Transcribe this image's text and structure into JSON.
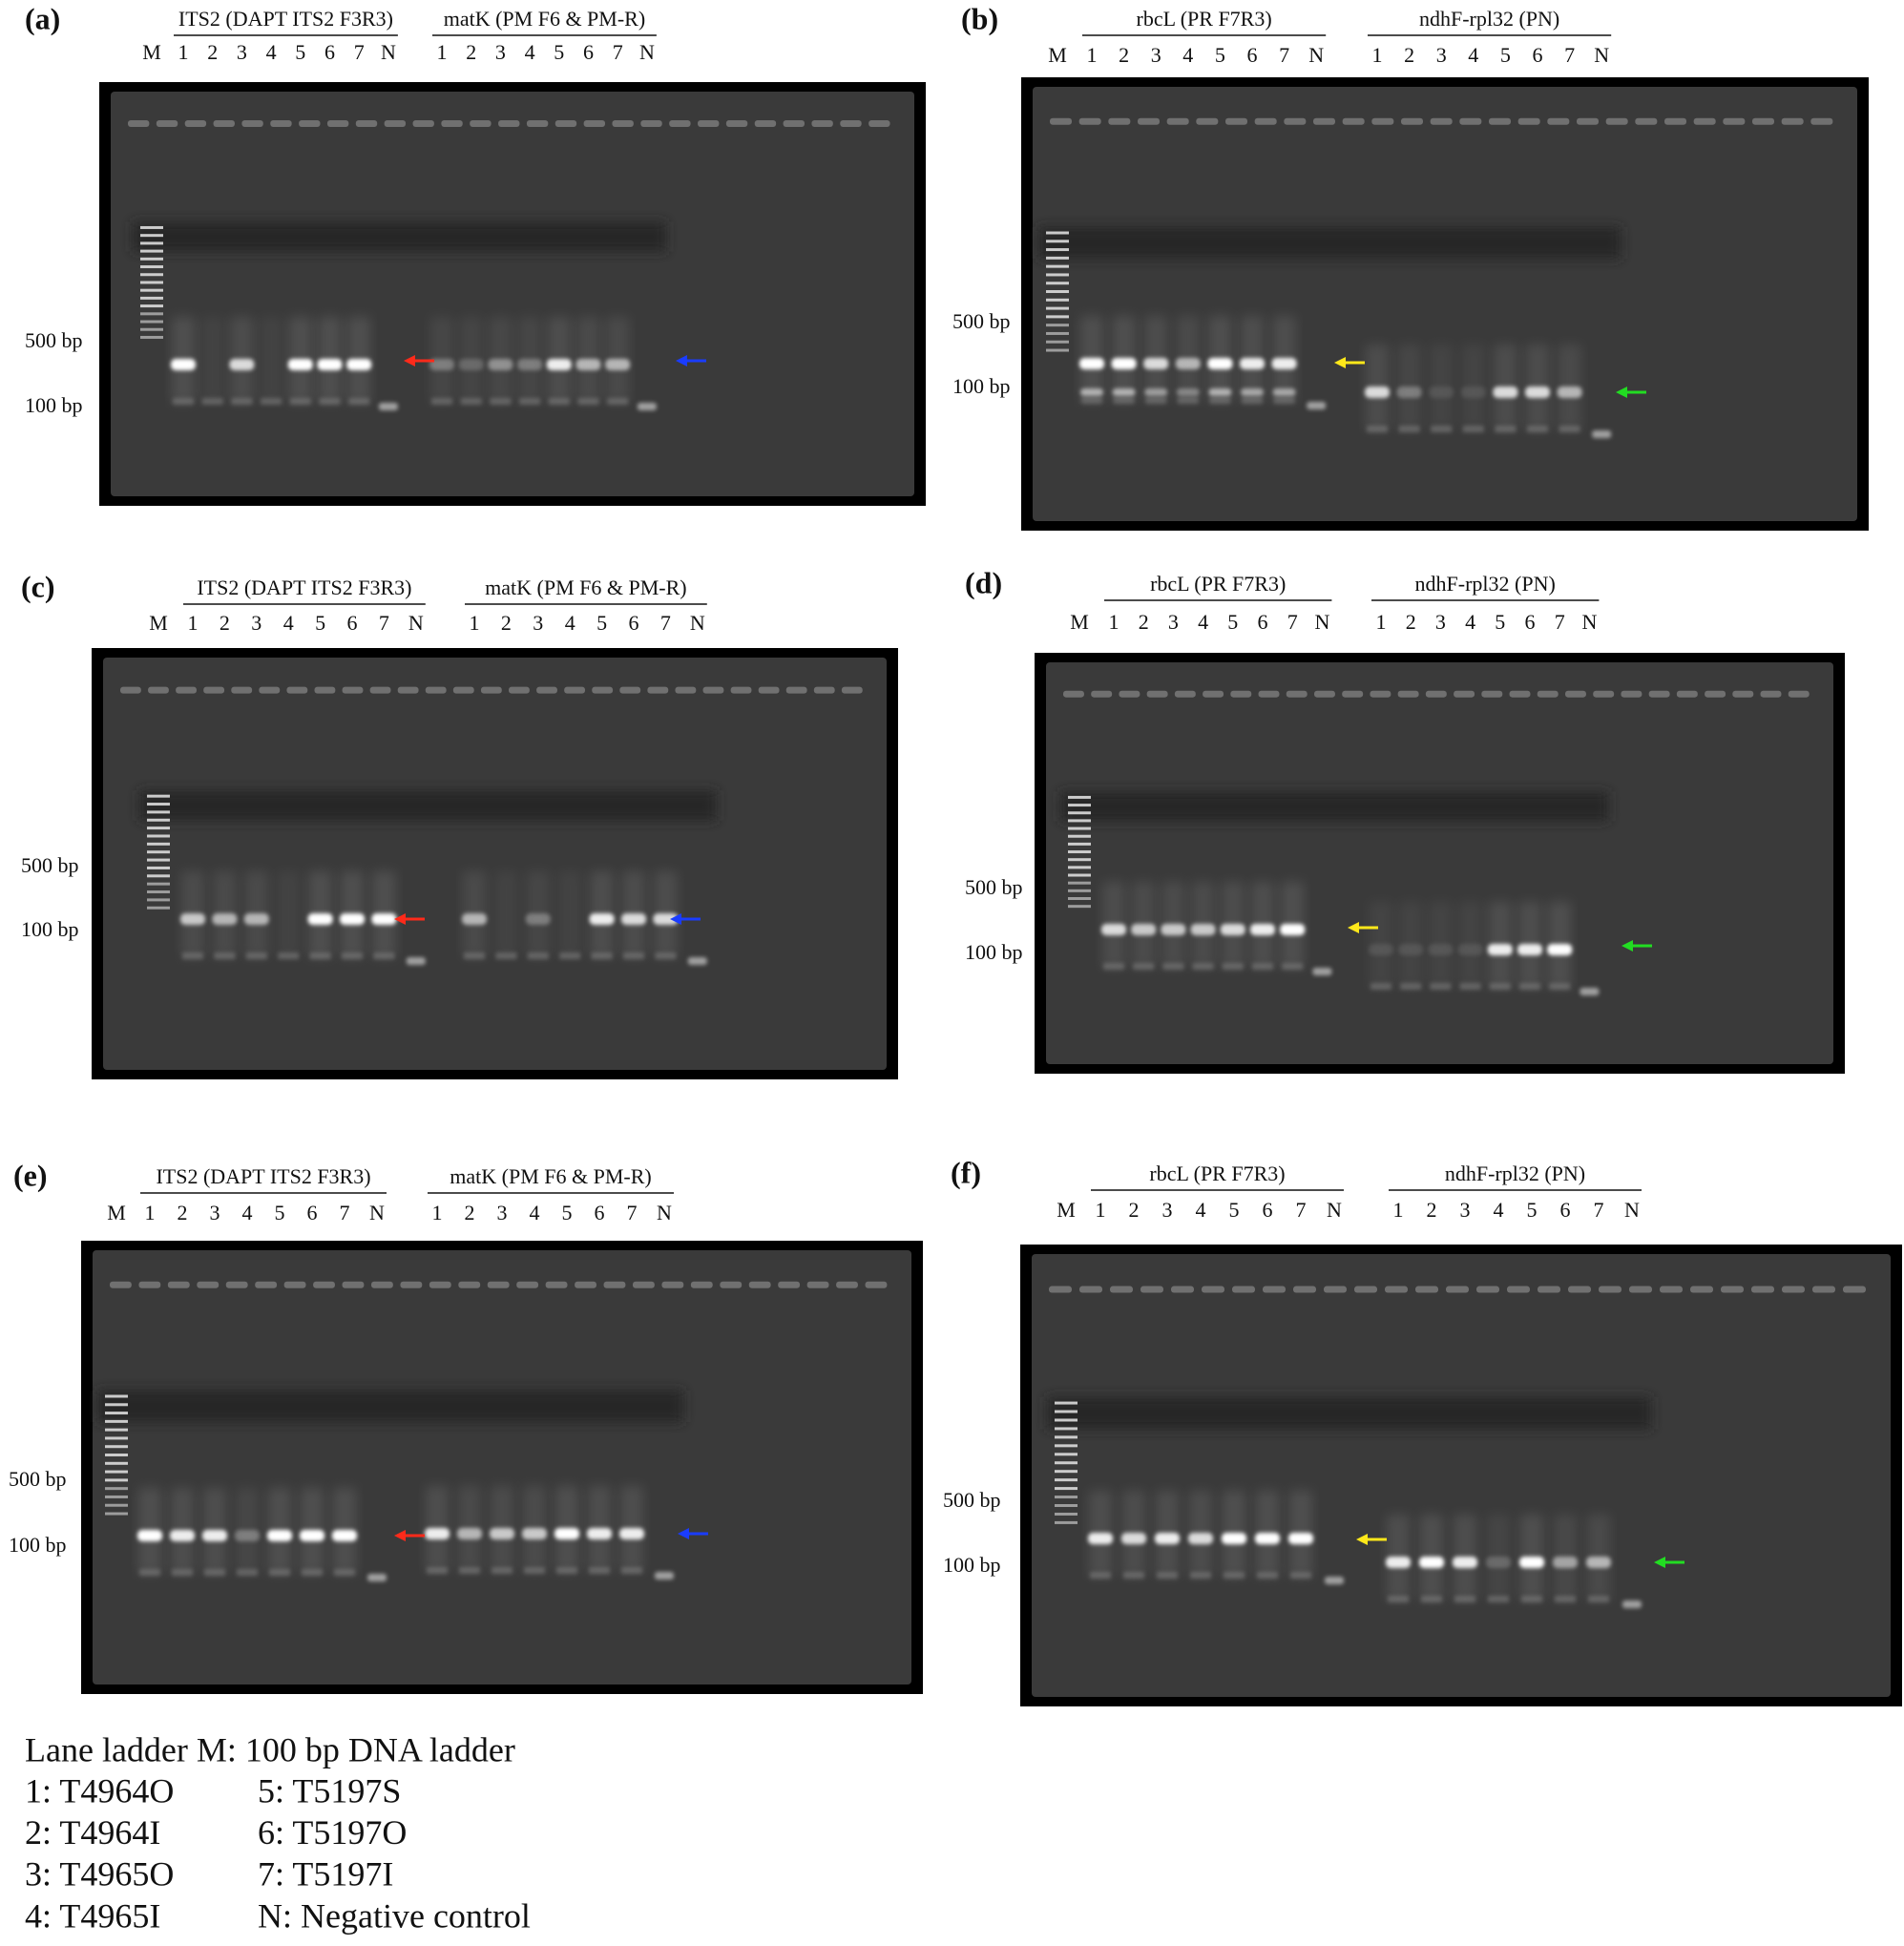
{
  "panels": [
    {
      "label": "(a)",
      "ladder": "M",
      "markers": [
        "500 bp",
        "100 bp"
      ],
      "groups": [
        {
          "title": "ITS2 (DAPT ITS2 F3R3)",
          "lanes": [
            "1",
            "2",
            "3",
            "4",
            "5",
            "6",
            "7",
            "N"
          ]
        },
        {
          "title": "matK (PM F6 & PM-R)",
          "lanes": [
            "1",
            "2",
            "3",
            "4",
            "5",
            "6",
            "7",
            "N"
          ]
        }
      ]
    },
    {
      "label": "(b)",
      "ladder": "M",
      "markers": [
        "500 bp",
        "100 bp"
      ],
      "groups": [
        {
          "title": "rbcL (PR F7R3)",
          "lanes": [
            "1",
            "2",
            "3",
            "4",
            "5",
            "6",
            "7",
            "N"
          ]
        },
        {
          "title": "ndhF-rpl32 (PN)",
          "lanes": [
            "1",
            "2",
            "3",
            "4",
            "5",
            "6",
            "7",
            "N"
          ]
        }
      ]
    },
    {
      "label": "(c)",
      "ladder": "M",
      "markers": [
        "500 bp",
        "100 bp"
      ],
      "groups": [
        {
          "title": "ITS2 (DAPT ITS2 F3R3)",
          "lanes": [
            "1",
            "2",
            "3",
            "4",
            "5",
            "6",
            "7",
            "N"
          ]
        },
        {
          "title": "matK (PM F6 & PM-R)",
          "lanes": [
            "1",
            "2",
            "3",
            "4",
            "5",
            "6",
            "7",
            "N"
          ]
        }
      ]
    },
    {
      "label": "(d)",
      "ladder": "M",
      "markers": [
        "500 bp",
        "100 bp"
      ],
      "groups": [
        {
          "title": "rbcL (PR F7R3)",
          "lanes": [
            "1",
            "2",
            "3",
            "4",
            "5",
            "6",
            "7",
            "N"
          ]
        },
        {
          "title": "ndhF-rpl32 (PN)",
          "lanes": [
            "1",
            "2",
            "3",
            "4",
            "5",
            "6",
            "7",
            "N"
          ]
        }
      ]
    },
    {
      "label": "(e)",
      "ladder": "M",
      "markers": [
        "500 bp",
        "100 bp"
      ],
      "groups": [
        {
          "title": "ITS2 (DAPT ITS2 F3R3)",
          "lanes": [
            "1",
            "2",
            "3",
            "4",
            "5",
            "6",
            "7",
            "N"
          ]
        },
        {
          "title": "matK (PM F6 & PM-R)",
          "lanes": [
            "1",
            "2",
            "3",
            "4",
            "5",
            "6",
            "7",
            "N"
          ]
        }
      ]
    },
    {
      "label": "(f)",
      "ladder": "M",
      "markers": [
        "500 bp",
        "100 bp"
      ],
      "groups": [
        {
          "title": "rbcL (PR F7R3)",
          "lanes": [
            "1",
            "2",
            "3",
            "4",
            "5",
            "6",
            "7",
            "N"
          ]
        },
        {
          "title": "ndhF-rpl32 (PN)",
          "lanes": [
            "1",
            "2",
            "3",
            "4",
            "5",
            "6",
            "7",
            "N"
          ]
        }
      ]
    }
  ],
  "legend": {
    "title": "Lane ladder M: 100 bp DNA ladder",
    "items": [
      "1: T4964O",
      "2: T4964I",
      "3: T4965O",
      "4: T4965I",
      "5: T5197S",
      "6: T5197O",
      "7: T5197I",
      "N: Negative control"
    ]
  }
}
